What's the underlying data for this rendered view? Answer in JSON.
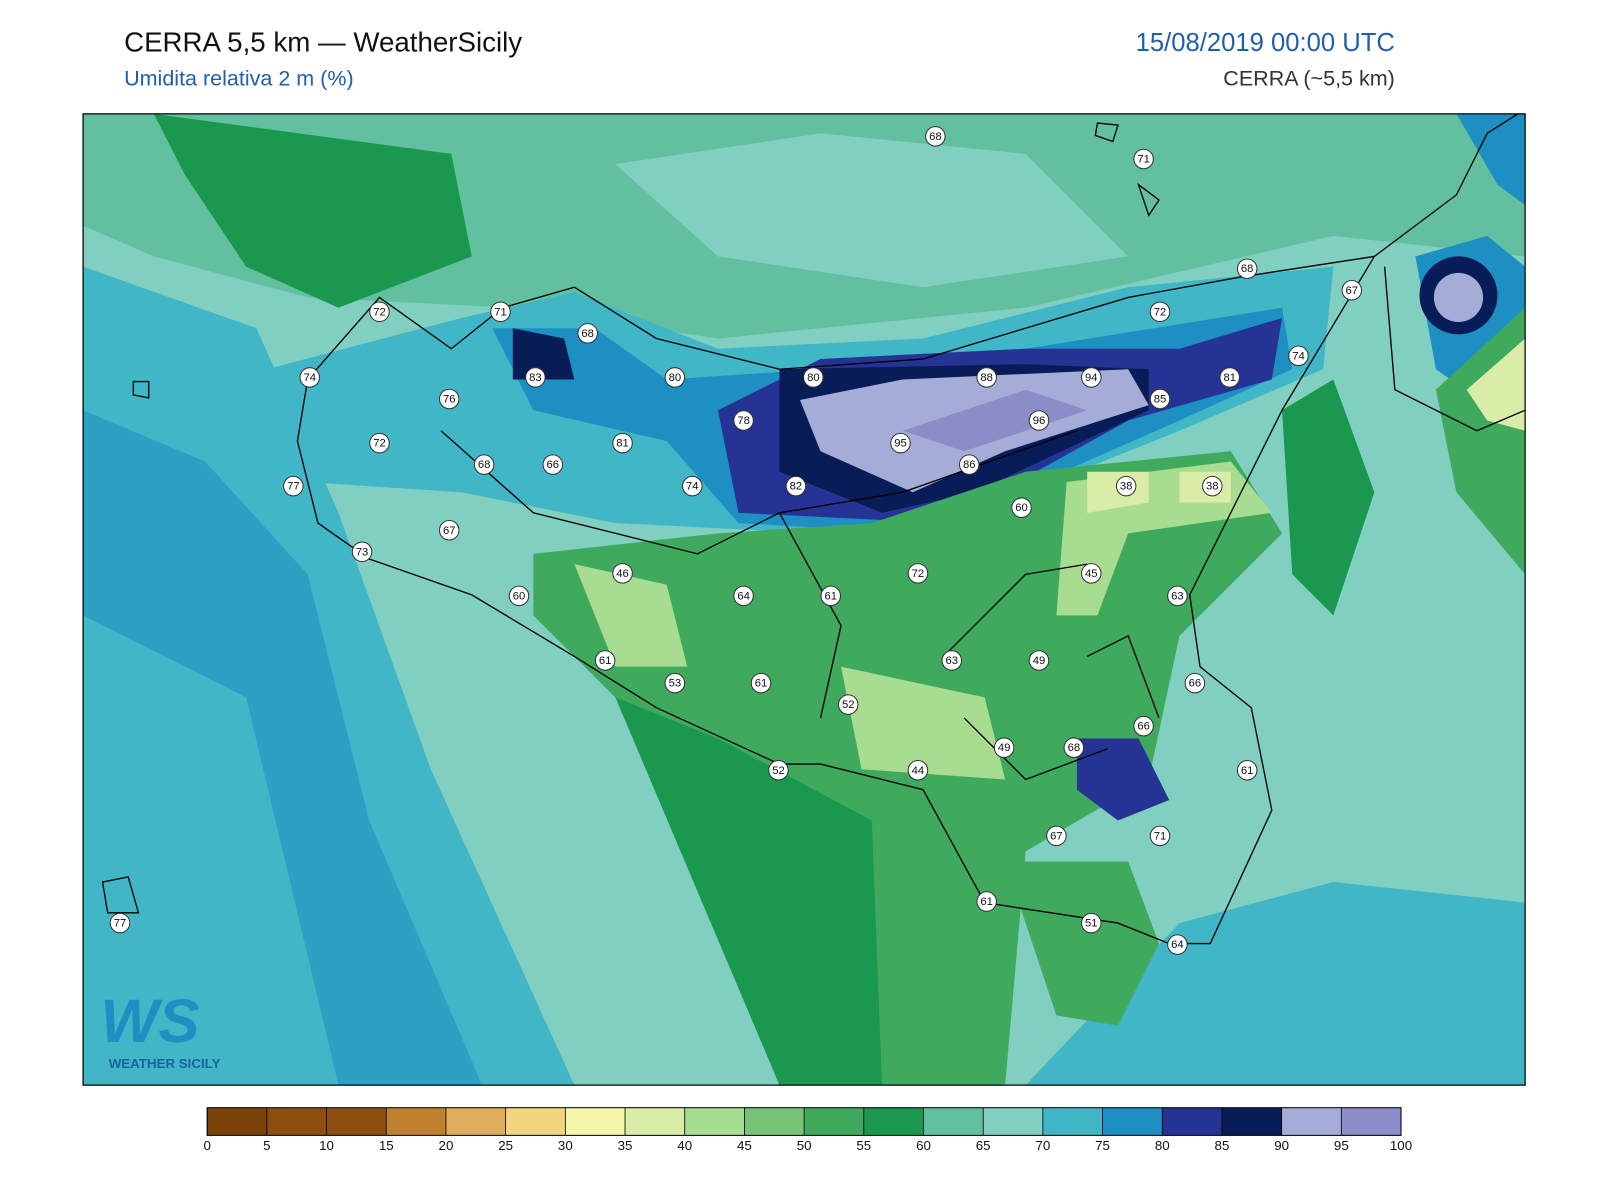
{
  "header": {
    "title": "CERRA 5,5 km — WeatherSicily",
    "subtitle": "Umidita relativa 2 m (%)",
    "date": "15/08/2019 00:00 UTC",
    "model": "CERRA (~5,5 km)"
  },
  "logo": {
    "mark": "WS",
    "text": "WEATHER SICILY"
  },
  "stations": [
    68,
    71,
    68,
    67,
    72,
    71,
    68,
    72,
    74,
    83,
    80,
    80,
    88,
    94,
    81,
    74,
    76,
    85,
    78,
    96,
    72,
    81,
    95,
    68,
    66,
    86,
    77,
    74,
    82,
    38,
    38,
    60,
    67,
    73,
    46,
    72,
    45,
    60,
    64,
    61,
    63,
    61,
    63,
    49,
    53,
    61,
    66,
    52,
    66,
    49,
    68,
    44,
    52,
    61,
    67,
    71,
    61,
    51,
    64,
    77
  ],
  "colorbar": {
    "ticks": [
      0,
      5,
      10,
      15,
      20,
      25,
      30,
      35,
      40,
      45,
      50,
      55,
      60,
      65,
      70,
      75,
      80,
      85,
      90,
      95,
      100
    ],
    "colors": [
      "#7a4208",
      "#8c4f10",
      "#8c4f10",
      "#c0812e",
      "#dfae5a",
      "#f2d57e",
      "#f6f6aa",
      "#d9eda8",
      "#a8dc90",
      "#77c479",
      "#3fa95d",
      "#1b9850",
      "#62c0a0",
      "#80cfc0",
      "#41b6c6",
      "#1e8fc3",
      "#253494",
      "#081d58",
      "#a5acd8",
      "#8c8cc8"
    ]
  }
}
